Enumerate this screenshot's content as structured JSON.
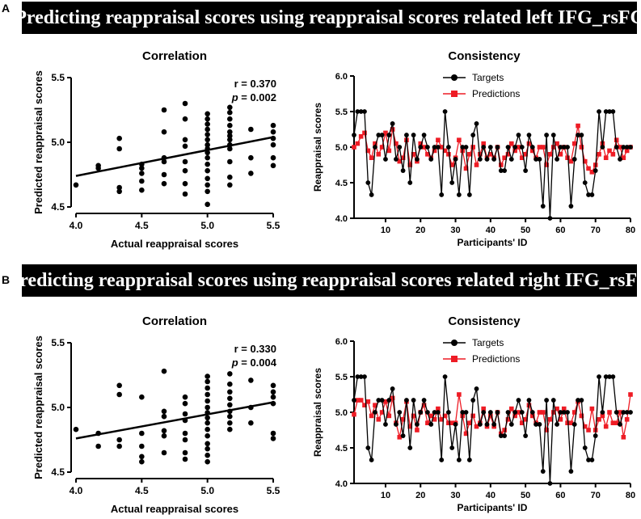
{
  "panels": [
    {
      "letter": "A",
      "banner": "Predicting reappraisal scores using reappraisal scores related left IFG_rsFC",
      "correlation": {
        "title": "Correlation",
        "r_text": "r = 0.370",
        "p_label": "p",
        "p_text": " = 0.002",
        "xlabel": "Actual reappraisal scores",
        "ylabel": "Predicted reappraisal scores"
      },
      "consistency": {
        "title": "Consistency",
        "xlabel": "Participants' ID",
        "ylabel": "Reappraisal scores"
      }
    },
    {
      "letter": "B",
      "banner": "Predicting reappraisal scores using reappraisal scores related right IFG_rsFC",
      "correlation": {
        "title": "Correlation",
        "r_text": "r = 0.330",
        "p_label": "p",
        "p_text": " = 0.004",
        "xlabel": "Actual reappraisal scores",
        "ylabel": "Predicted reappraisal scores"
      },
      "consistency": {
        "title": "Consistency",
        "xlabel": "Participants' ID",
        "ylabel": "Reappraisal scores"
      }
    }
  ],
  "chart_data": [
    {
      "id": "A-correlation",
      "type": "scatter",
      "title": "Correlation",
      "xlabel": "Actual reappraisal scores",
      "ylabel": "Predicted reappraisal scores",
      "xlim": [
        4.0,
        5.5
      ],
      "ylim": [
        4.5,
        5.5
      ],
      "xticks": [
        "4.0",
        "4.5",
        "5.0",
        "5.5"
      ],
      "yticks": [
        "4.5",
        "5.0",
        "5.5"
      ],
      "regression": [
        [
          4.0,
          4.74
        ],
        [
          5.5,
          5.04
        ]
      ],
      "annotation": {
        "r": 0.37,
        "p": 0.002
      },
      "points": [
        [
          4.0,
          4.67
        ],
        [
          4.17,
          4.8
        ],
        [
          4.17,
          4.82
        ],
        [
          4.33,
          4.62
        ],
        [
          4.33,
          4.65
        ],
        [
          4.33,
          4.95
        ],
        [
          4.33,
          5.03
        ],
        [
          4.5,
          4.63
        ],
        [
          4.5,
          4.7
        ],
        [
          4.5,
          4.76
        ],
        [
          4.5,
          4.8
        ],
        [
          4.5,
          4.83
        ],
        [
          4.67,
          4.68
        ],
        [
          4.67,
          4.75
        ],
        [
          4.67,
          4.85
        ],
        [
          4.67,
          4.88
        ],
        [
          4.67,
          5.08
        ],
        [
          4.67,
          5.25
        ],
        [
          4.83,
          4.6
        ],
        [
          4.83,
          4.68
        ],
        [
          4.83,
          4.78
        ],
        [
          4.83,
          4.85
        ],
        [
          4.83,
          4.97
        ],
        [
          4.83,
          5.02
        ],
        [
          4.83,
          5.18
        ],
        [
          4.83,
          5.3
        ],
        [
          5.0,
          4.52
        ],
        [
          5.0,
          4.62
        ],
        [
          5.0,
          4.67
        ],
        [
          5.0,
          4.72
        ],
        [
          5.0,
          4.78
        ],
        [
          5.0,
          4.83
        ],
        [
          5.0,
          4.88
        ],
        [
          5.0,
          4.92
        ],
        [
          5.0,
          4.95
        ],
        [
          5.0,
          4.98
        ],
        [
          5.0,
          5.02
        ],
        [
          5.0,
          5.06
        ],
        [
          5.0,
          5.1
        ],
        [
          5.0,
          5.14
        ],
        [
          5.0,
          5.18
        ],
        [
          5.0,
          5.22
        ],
        [
          5.17,
          4.67
        ],
        [
          5.17,
          4.73
        ],
        [
          5.17,
          4.85
        ],
        [
          5.17,
          4.95
        ],
        [
          5.17,
          4.98
        ],
        [
          5.17,
          5.02
        ],
        [
          5.17,
          5.05
        ],
        [
          5.17,
          5.08
        ],
        [
          5.17,
          5.13
        ],
        [
          5.17,
          5.18
        ],
        [
          5.17,
          5.23
        ],
        [
          5.17,
          5.27
        ],
        [
          5.33,
          4.76
        ],
        [
          5.33,
          4.88
        ],
        [
          5.33,
          5.1
        ],
        [
          5.5,
          4.82
        ],
        [
          5.5,
          4.88
        ],
        [
          5.5,
          4.98
        ],
        [
          5.5,
          5.03
        ],
        [
          5.5,
          5.08
        ],
        [
          5.5,
          5.13
        ]
      ]
    },
    {
      "id": "A-consistency",
      "type": "line",
      "title": "Consistency",
      "xlabel": "Participants' ID",
      "ylabel": "Reappraisal scores",
      "xlim": [
        1,
        80
      ],
      "ylim": [
        4.0,
        6.0
      ],
      "xticks": [
        10,
        20,
        30,
        40,
        50,
        60,
        70,
        80
      ],
      "yticks": [
        "4.0",
        "4.5",
        "5.0",
        "5.5",
        "6.0"
      ],
      "legend": "top-center",
      "x": "1..80",
      "series": [
        {
          "name": "Targets",
          "color": "#000000",
          "marker": "circle",
          "values": [
            5.17,
            5.5,
            5.5,
            5.5,
            4.5,
            4.33,
            5.0,
            5.17,
            5.17,
            4.83,
            5.17,
            5.33,
            4.83,
            5.0,
            4.67,
            5.17,
            4.5,
            5.17,
            4.83,
            5.0,
            5.17,
            5.0,
            4.83,
            5.0,
            5.0,
            4.33,
            5.5,
            5.0,
            4.5,
            4.83,
            4.33,
            5.0,
            5.0,
            4.33,
            5.17,
            5.33,
            4.83,
            5.0,
            4.83,
            5.0,
            4.83,
            5.0,
            4.67,
            4.67,
            5.0,
            4.83,
            5.0,
            5.17,
            5.0,
            4.67,
            5.17,
            5.0,
            4.83,
            4.83,
            4.17,
            5.17,
            4.0,
            5.17,
            4.83,
            5.0,
            5.0,
            5.0,
            4.17,
            4.83,
            5.17,
            5.17,
            4.5,
            4.33,
            4.33,
            4.67,
            5.5,
            5.0,
            5.5,
            5.5,
            5.5,
            5.0,
            4.83,
            5.0,
            5.0,
            5.0
          ]
        },
        {
          "name": "Predictions",
          "color": "#ee1c25",
          "marker": "square",
          "values": [
            5.0,
            5.05,
            5.15,
            5.2,
            4.95,
            4.85,
            5.05,
            4.9,
            5.0,
            5.2,
            4.95,
            5.25,
            5.05,
            4.8,
            4.85,
            5.1,
            4.75,
            4.9,
            4.8,
            5.05,
            5.0,
            4.9,
            4.85,
            4.95,
            5.1,
            5.0,
            4.95,
            4.9,
            4.75,
            4.85,
            5.1,
            4.95,
            4.7,
            4.9,
            5.0,
            4.75,
            4.9,
            5.05,
            4.85,
            4.9,
            4.85,
            5.0,
            4.75,
            4.85,
            4.9,
            5.05,
            4.95,
            5.0,
            4.85,
            4.9,
            5.05,
            4.95,
            4.85,
            5.0,
            5.0,
            4.75,
            4.9,
            5.0,
            5.05,
            4.9,
            5.0,
            4.85,
            4.8,
            5.05,
            5.3,
            5.0,
            4.8,
            4.7,
            4.65,
            4.75,
            4.9,
            5.05,
            4.85,
            4.95,
            4.9,
            5.1,
            5.0,
            4.85,
            4.95,
            5.0
          ]
        }
      ]
    },
    {
      "id": "B-correlation",
      "type": "scatter",
      "title": "Correlation",
      "xlabel": "Actual reappraisal scores",
      "ylabel": "Predicted reappraisal scores",
      "xlim": [
        4.0,
        5.5
      ],
      "ylim": [
        4.5,
        5.5
      ],
      "xticks": [
        "4.0",
        "4.5",
        "5.0",
        "5.5"
      ],
      "yticks": [
        "4.5",
        "5.0",
        "5.5"
      ],
      "regression": [
        [
          4.0,
          4.76
        ],
        [
          5.5,
          5.04
        ]
      ],
      "annotation": {
        "r": 0.33,
        "p": 0.004
      },
      "points": [
        [
          4.0,
          4.83
        ],
        [
          4.17,
          4.7
        ],
        [
          4.17,
          4.8
        ],
        [
          4.33,
          4.7
        ],
        [
          4.33,
          4.75
        ],
        [
          4.33,
          5.1
        ],
        [
          4.33,
          5.17
        ],
        [
          4.5,
          4.58
        ],
        [
          4.5,
          4.62
        ],
        [
          4.5,
          4.7
        ],
        [
          4.5,
          4.8
        ],
        [
          4.5,
          5.08
        ],
        [
          4.67,
          4.65
        ],
        [
          4.67,
          4.78
        ],
        [
          4.67,
          4.82
        ],
        [
          4.67,
          4.93
        ],
        [
          4.67,
          4.97
        ],
        [
          4.67,
          5.28
        ],
        [
          4.83,
          4.6
        ],
        [
          4.83,
          4.65
        ],
        [
          4.83,
          4.75
        ],
        [
          4.83,
          4.8
        ],
        [
          4.83,
          4.9
        ],
        [
          4.83,
          4.95
        ],
        [
          4.83,
          5.03
        ],
        [
          4.83,
          5.08
        ],
        [
          5.0,
          4.58
        ],
        [
          5.0,
          4.63
        ],
        [
          5.0,
          4.68
        ],
        [
          5.0,
          4.72
        ],
        [
          5.0,
          4.78
        ],
        [
          5.0,
          4.83
        ],
        [
          5.0,
          4.88
        ],
        [
          5.0,
          4.92
        ],
        [
          5.0,
          4.96
        ],
        [
          5.0,
          5.0
        ],
        [
          5.0,
          5.05
        ],
        [
          5.0,
          5.1
        ],
        [
          5.0,
          5.15
        ],
        [
          5.0,
          5.2
        ],
        [
          5.0,
          5.24
        ],
        [
          5.17,
          4.83
        ],
        [
          5.17,
          4.88
        ],
        [
          5.17,
          4.93
        ],
        [
          5.17,
          4.97
        ],
        [
          5.17,
          5.02
        ],
        [
          5.17,
          5.07
        ],
        [
          5.17,
          5.12
        ],
        [
          5.17,
          5.18
        ],
        [
          5.17,
          5.26
        ],
        [
          5.33,
          4.88
        ],
        [
          5.33,
          5.0
        ],
        [
          5.33,
          5.21
        ],
        [
          5.5,
          4.76
        ],
        [
          5.5,
          4.8
        ],
        [
          5.5,
          5.03
        ],
        [
          5.5,
          5.08
        ],
        [
          5.5,
          5.12
        ],
        [
          5.5,
          5.17
        ]
      ]
    },
    {
      "id": "B-consistency",
      "type": "line",
      "title": "Consistency",
      "xlabel": "Participants' ID",
      "ylabel": "Reappraisal scores",
      "xlim": [
        1,
        80
      ],
      "ylim": [
        4.0,
        6.0
      ],
      "xticks": [
        10,
        20,
        30,
        40,
        50,
        60,
        70,
        80
      ],
      "yticks": [
        "4.0",
        "4.5",
        "5.0",
        "5.5",
        "6.0"
      ],
      "legend": "top-center",
      "x": "1..80",
      "series": [
        {
          "name": "Targets",
          "color": "#000000",
          "marker": "circle",
          "values": [
            5.17,
            5.5,
            5.5,
            5.5,
            4.5,
            4.33,
            5.0,
            5.17,
            5.17,
            4.83,
            5.17,
            5.33,
            4.83,
            5.0,
            4.67,
            5.17,
            4.5,
            5.17,
            4.83,
            5.0,
            5.17,
            5.0,
            4.83,
            5.0,
            5.0,
            4.33,
            5.5,
            5.0,
            4.5,
            4.83,
            4.33,
            5.0,
            5.0,
            4.33,
            5.17,
            5.33,
            4.83,
            5.0,
            4.83,
            5.0,
            4.83,
            5.0,
            4.67,
            4.67,
            5.0,
            4.83,
            5.0,
            5.17,
            5.0,
            4.67,
            5.17,
            5.0,
            4.83,
            4.83,
            4.17,
            5.17,
            4.0,
            5.17,
            4.83,
            5.0,
            5.0,
            5.0,
            4.17,
            4.83,
            5.17,
            5.17,
            4.5,
            4.33,
            4.33,
            4.67,
            5.5,
            5.0,
            5.5,
            5.5,
            5.5,
            5.0,
            4.83,
            5.0,
            5.0,
            5.0
          ]
        },
        {
          "name": "Predictions",
          "color": "#ee1c25",
          "marker": "square",
          "values": [
            4.97,
            5.17,
            5.17,
            5.1,
            5.15,
            4.95,
            5.1,
            4.9,
            5.0,
            5.15,
            4.95,
            5.2,
            4.85,
            4.65,
            4.9,
            5.15,
            4.8,
            4.95,
            4.75,
            5.0,
            5.1,
            4.85,
            4.95,
            4.9,
            5.05,
            4.9,
            4.95,
            4.85,
            4.85,
            4.85,
            5.25,
            4.95,
            4.7,
            4.85,
            4.95,
            4.8,
            4.85,
            5.05,
            4.8,
            4.95,
            4.8,
            5.0,
            4.7,
            4.75,
            4.9,
            5.05,
            4.95,
            5.0,
            4.85,
            4.9,
            5.1,
            4.95,
            4.85,
            5.0,
            5.0,
            4.75,
            4.9,
            5.0,
            5.05,
            4.9,
            5.05,
            4.85,
            4.85,
            5.0,
            5.15,
            4.95,
            4.8,
            4.75,
            5.05,
            4.75,
            4.9,
            4.95,
            4.8,
            5.0,
            4.85,
            4.85,
            5.0,
            4.65,
            4.9,
            5.25
          ]
        }
      ]
    }
  ]
}
